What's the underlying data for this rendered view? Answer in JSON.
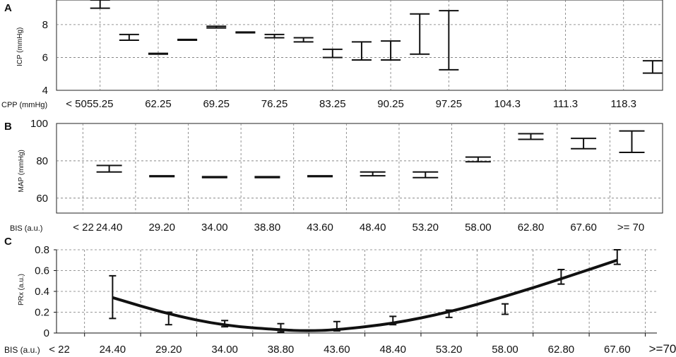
{
  "chart_data": [
    {
      "panel": "A",
      "type": "box",
      "ylabel": "ICP (mmHg)",
      "xlabel": "CPP (mmHg)",
      "ylim": [
        4,
        9.5
      ],
      "yticks": [
        4,
        6,
        8
      ],
      "categories": [
        "< 50",
        "55.25",
        "62.25",
        "69.25",
        "76.25",
        "83.25",
        "90.25",
        "97.25",
        "104.3",
        "111.3",
        "118.3"
      ],
      "ranges": [
        {
          "x": 55.25,
          "low": 9.0,
          "high": 9.5
        },
        {
          "x": 58.75,
          "low": 7.05,
          "high": 7.4
        },
        {
          "x": 62.25,
          "low": 6.2,
          "high": 6.25
        },
        {
          "x": 65.75,
          "low": 7.05,
          "high": 7.1
        },
        {
          "x": 69.25,
          "low": 7.8,
          "high": 7.9
        },
        {
          "x": 72.75,
          "low": 7.5,
          "high": 7.55
        },
        {
          "x": 76.25,
          "low": 7.2,
          "high": 7.4
        },
        {
          "x": 79.75,
          "low": 6.95,
          "high": 7.2
        },
        {
          "x": 83.25,
          "low": 6.0,
          "high": 6.5
        },
        {
          "x": 86.75,
          "low": 5.85,
          "high": 6.95
        },
        {
          "x": 90.25,
          "low": 5.85,
          "high": 7.0
        },
        {
          "x": 93.75,
          "low": 6.2,
          "high": 8.65
        },
        {
          "x": 97.25,
          "low": 5.25,
          "high": 8.85
        },
        {
          "x": 121.8,
          "low": 5.05,
          "high": 5.8
        }
      ]
    },
    {
      "panel": "B",
      "type": "box",
      "ylabel": "MAP (mmHg)",
      "xlabel": "BIS (a.u.)",
      "ylim": [
        52,
        100
      ],
      "yticks": [
        60,
        80,
        100
      ],
      "categories": [
        "< 22",
        "24.40",
        "29.20",
        "34.00",
        "38.80",
        "43.60",
        "48.40",
        "53.20",
        "58.00",
        "62.80",
        "67.60",
        ">= 70"
      ],
      "ranges": [
        {
          "x": 24.4,
          "low": 74,
          "high": 77.5
        },
        {
          "x": 29.2,
          "low": 71.5,
          "high": 72
        },
        {
          "x": 34.0,
          "low": 71,
          "high": 71.5
        },
        {
          "x": 38.8,
          "low": 71,
          "high": 71.5
        },
        {
          "x": 43.6,
          "low": 71.5,
          "high": 72
        },
        {
          "x": 48.4,
          "low": 72,
          "high": 74
        },
        {
          "x": 53.2,
          "low": 71,
          "high": 74
        },
        {
          "x": 58.0,
          "low": 79.5,
          "high": 82
        },
        {
          "x": 62.8,
          "low": 91.5,
          "high": 94.5
        },
        {
          "x": 67.6,
          "low": 86.5,
          "high": 92
        },
        {
          "x": 72.0,
          "low": 84.5,
          "high": 96
        }
      ]
    },
    {
      "panel": "C",
      "type": "line",
      "ylabel": "PRx (a.u.)",
      "xlabel": "BIS (a.u.)",
      "ylim": [
        0,
        0.8
      ],
      "yticks": [
        0,
        0.2,
        0.4,
        0.6,
        0.8
      ],
      "categories": [
        "< 22",
        "24.40",
        "29.20",
        "34.00",
        "38.80",
        "43.60",
        "48.40",
        "53.20",
        "58.00",
        "62.80",
        "67.60",
        ">=70"
      ],
      "curve": {
        "x": [
          24.4,
          29.2,
          34.0,
          38.8,
          41.0,
          43.6,
          48.4,
          53.2,
          58.0,
          62.8,
          67.6
        ],
        "y": [
          0.34,
          0.18,
          0.07,
          0.03,
          0.02,
          0.03,
          0.09,
          0.2,
          0.35,
          0.52,
          0.7
        ]
      },
      "errorbars": [
        {
          "x": 24.4,
          "low": 0.14,
          "high": 0.55
        },
        {
          "x": 29.2,
          "low": 0.08,
          "high": 0.2
        },
        {
          "x": 34.0,
          "low": 0.06,
          "high": 0.12
        },
        {
          "x": 38.8,
          "low": 0.01,
          "high": 0.09
        },
        {
          "x": 43.6,
          "low": 0.02,
          "high": 0.11
        },
        {
          "x": 48.4,
          "low": 0.08,
          "high": 0.16
        },
        {
          "x": 53.2,
          "low": 0.15,
          "high": 0.22
        },
        {
          "x": 58.0,
          "low": 0.18,
          "high": 0.28
        },
        {
          "x": 62.8,
          "low": 0.47,
          "high": 0.61
        },
        {
          "x": 67.6,
          "low": 0.66,
          "high": 0.8
        }
      ]
    }
  ]
}
